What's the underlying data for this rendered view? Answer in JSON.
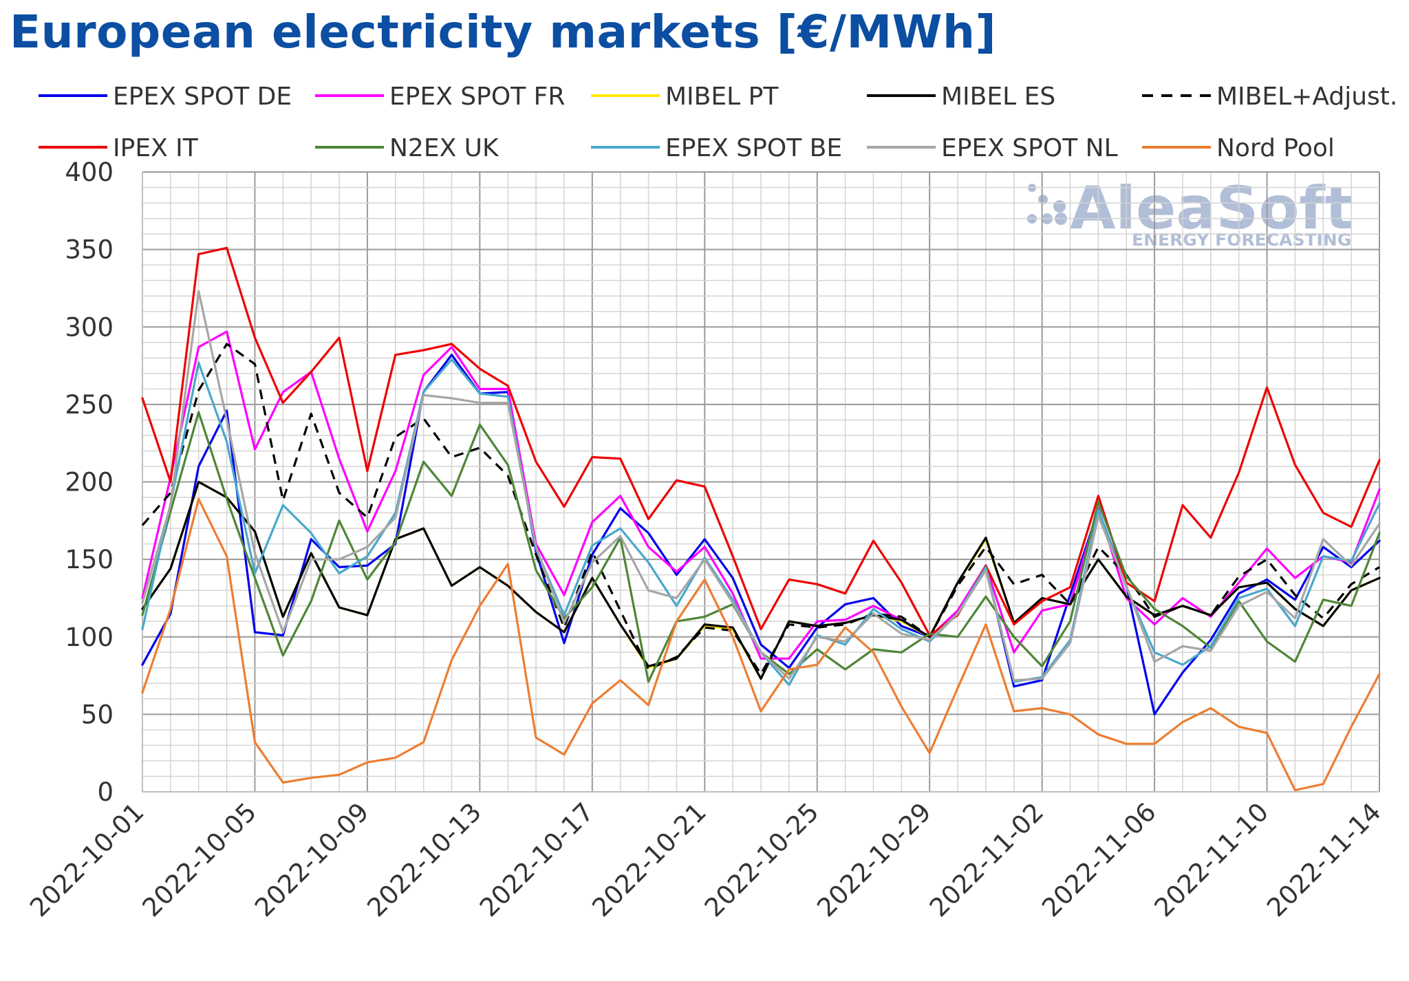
{
  "chart_data": {
    "type": "line",
    "title": "European electricity markets [€/MWh]",
    "ylim": [
      0,
      400
    ],
    "yticks": [
      0,
      50,
      100,
      150,
      200,
      250,
      300,
      350,
      400
    ],
    "x": [
      "2022-10-01",
      "2022-10-02",
      "2022-10-03",
      "2022-10-04",
      "2022-10-05",
      "2022-10-06",
      "2022-10-07",
      "2022-10-08",
      "2022-10-09",
      "2022-10-10",
      "2022-10-11",
      "2022-10-12",
      "2022-10-13",
      "2022-10-14",
      "2022-10-15",
      "2022-10-16",
      "2022-10-17",
      "2022-10-18",
      "2022-10-19",
      "2022-10-20",
      "2022-10-21",
      "2022-10-22",
      "2022-10-23",
      "2022-10-24",
      "2022-10-25",
      "2022-10-26",
      "2022-10-27",
      "2022-10-28",
      "2022-10-29",
      "2022-10-30",
      "2022-10-31",
      "2022-11-01",
      "2022-11-02",
      "2022-11-03",
      "2022-11-04",
      "2022-11-05",
      "2022-11-06",
      "2022-11-07",
      "2022-11-08",
      "2022-11-09",
      "2022-11-10",
      "2022-11-11",
      "2022-11-12",
      "2022-11-13",
      "2022-11-14"
    ],
    "xtick_labels": [
      "2022-10-01",
      "2022-10-05",
      "2022-10-09",
      "2022-10-13",
      "2022-10-17",
      "2022-10-21",
      "2022-10-25",
      "2022-10-29",
      "2022-11-02",
      "2022-11-06",
      "2022-11-10",
      "2022-11-14"
    ],
    "grid": true,
    "legend_position": "top",
    "series": [
      {
        "name": "EPEX SPOT DE",
        "color": "#0000ee",
        "dash": "solid",
        "values": [
          82,
          115,
          210,
          246,
          103,
          101,
          163,
          145,
          146,
          160,
          258,
          282,
          257,
          258,
          155,
          96,
          153,
          183,
          167,
          140,
          163,
          138,
          95,
          80,
          106,
          121,
          125,
          107,
          100,
          115,
          145,
          68,
          72,
          127,
          182,
          133,
          50,
          77,
          98,
          128,
          137,
          124,
          158,
          145,
          162
        ]
      },
      {
        "name": "EPEX SPOT FR",
        "color": "#ff00ff",
        "dash": "solid",
        "values": [
          125,
          203,
          287,
          297,
          221,
          258,
          271,
          215,
          168,
          207,
          269,
          287,
          260,
          260,
          160,
          127,
          174,
          191,
          158,
          142,
          158,
          128,
          86,
          86,
          110,
          111,
          120,
          111,
          100,
          117,
          146,
          90,
          117,
          121,
          183,
          125,
          108,
          125,
          113,
          135,
          157,
          138,
          152,
          148,
          195
        ]
      },
      {
        "name": "MIBEL PT",
        "color": "#ffe800",
        "dash": "solid",
        "values": [
          118,
          144,
          200,
          190,
          168,
          113,
          154,
          119,
          114,
          163,
          170,
          133,
          145,
          133,
          116,
          103,
          138,
          108,
          80,
          86,
          107,
          105,
          73,
          110,
          107,
          109,
          114,
          110,
          100,
          135,
          163,
          109,
          125,
          121,
          150,
          126,
          114,
          120,
          114,
          132,
          135,
          118,
          107,
          130,
          138
        ]
      },
      {
        "name": "MIBEL ES",
        "color": "#000000",
        "dash": "solid",
        "values": [
          118,
          144,
          200,
          190,
          168,
          113,
          154,
          119,
          114,
          163,
          170,
          133,
          145,
          133,
          116,
          103,
          138,
          108,
          81,
          86,
          108,
          106,
          73,
          110,
          107,
          109,
          114,
          111,
          100,
          135,
          164,
          109,
          125,
          121,
          150,
          126,
          114,
          120,
          114,
          132,
          135,
          118,
          107,
          130,
          138
        ]
      },
      {
        "name": "MIBEL+Adjust.",
        "color": "#000000",
        "dash": "dashed",
        "values": [
          172,
          193,
          259,
          289,
          276,
          188,
          244,
          193,
          177,
          229,
          241,
          216,
          222,
          204,
          153,
          106,
          155,
          117,
          79,
          87,
          106,
          104,
          76,
          108,
          106,
          108,
          115,
          113,
          100,
          133,
          158,
          134,
          140,
          121,
          158,
          140,
          113,
          120,
          114,
          139,
          150,
          127,
          112,
          134,
          145
        ]
      },
      {
        "name": "IPEX IT",
        "color": "#ee0000",
        "dash": "solid",
        "values": [
          254,
          200,
          347,
          351,
          293,
          251,
          271,
          293,
          207,
          282,
          285,
          289,
          273,
          262,
          213,
          184,
          216,
          215,
          176,
          201,
          197,
          152,
          105,
          137,
          134,
          128,
          162,
          135,
          101,
          114,
          146,
          108,
          123,
          132,
          191,
          135,
          123,
          185,
          164,
          206,
          261,
          211,
          180,
          171,
          214
        ]
      },
      {
        "name": "N2EX UK",
        "color": "#4e8636",
        "dash": "solid",
        "values": [
          114,
          181,
          245,
          189,
          138,
          88,
          123,
          175,
          137,
          161,
          213,
          191,
          237,
          211,
          143,
          112,
          132,
          164,
          71,
          110,
          113,
          121,
          90,
          76,
          92,
          79,
          92,
          90,
          102,
          100,
          126,
          100,
          81,
          110,
          187,
          139,
          118,
          107,
          93,
          123,
          97,
          84,
          124,
          120,
          167
        ]
      },
      {
        "name": "EPEX SPOT BE",
        "color": "#48a8cc",
        "dash": "solid",
        "values": [
          105,
          186,
          277,
          226,
          141,
          185,
          167,
          141,
          152,
          180,
          258,
          279,
          257,
          255,
          157,
          114,
          159,
          170,
          148,
          120,
          151,
          124,
          90,
          69,
          101,
          95,
          118,
          105,
          97,
          115,
          145,
          71,
          74,
          98,
          182,
          132,
          90,
          82,
          94,
          125,
          131,
          107,
          152,
          149,
          186
        ]
      },
      {
        "name": "EPEX SPOT NL",
        "color": "#a6a6a6",
        "dash": "solid",
        "values": [
          122,
          185,
          323,
          240,
          154,
          103,
          150,
          150,
          158,
          177,
          256,
          254,
          251,
          251,
          158,
          109,
          148,
          165,
          130,
          125,
          150,
          122,
          90,
          73,
          100,
          97,
          115,
          102,
          98,
          115,
          143,
          72,
          73,
          96,
          178,
          133,
          84,
          94,
          91,
          120,
          129,
          112,
          163,
          146,
          173
        ]
      },
      {
        "name": "Nord Pool",
        "color": "#ed7d31",
        "dash": "solid",
        "values": [
          64,
          118,
          189,
          152,
          32,
          6,
          9,
          11,
          19,
          22,
          32,
          85,
          120,
          147,
          35,
          24,
          57,
          72,
          56,
          110,
          137,
          100,
          52,
          79,
          82,
          106,
          90,
          55,
          25,
          67,
          108,
          52,
          54,
          50,
          37,
          31,
          31,
          45,
          54,
          42,
          38,
          1,
          5,
          42,
          76
        ]
      }
    ]
  },
  "watermark": {
    "brand": "AleaSoft",
    "tagline": "ENERGY FORECASTING"
  }
}
